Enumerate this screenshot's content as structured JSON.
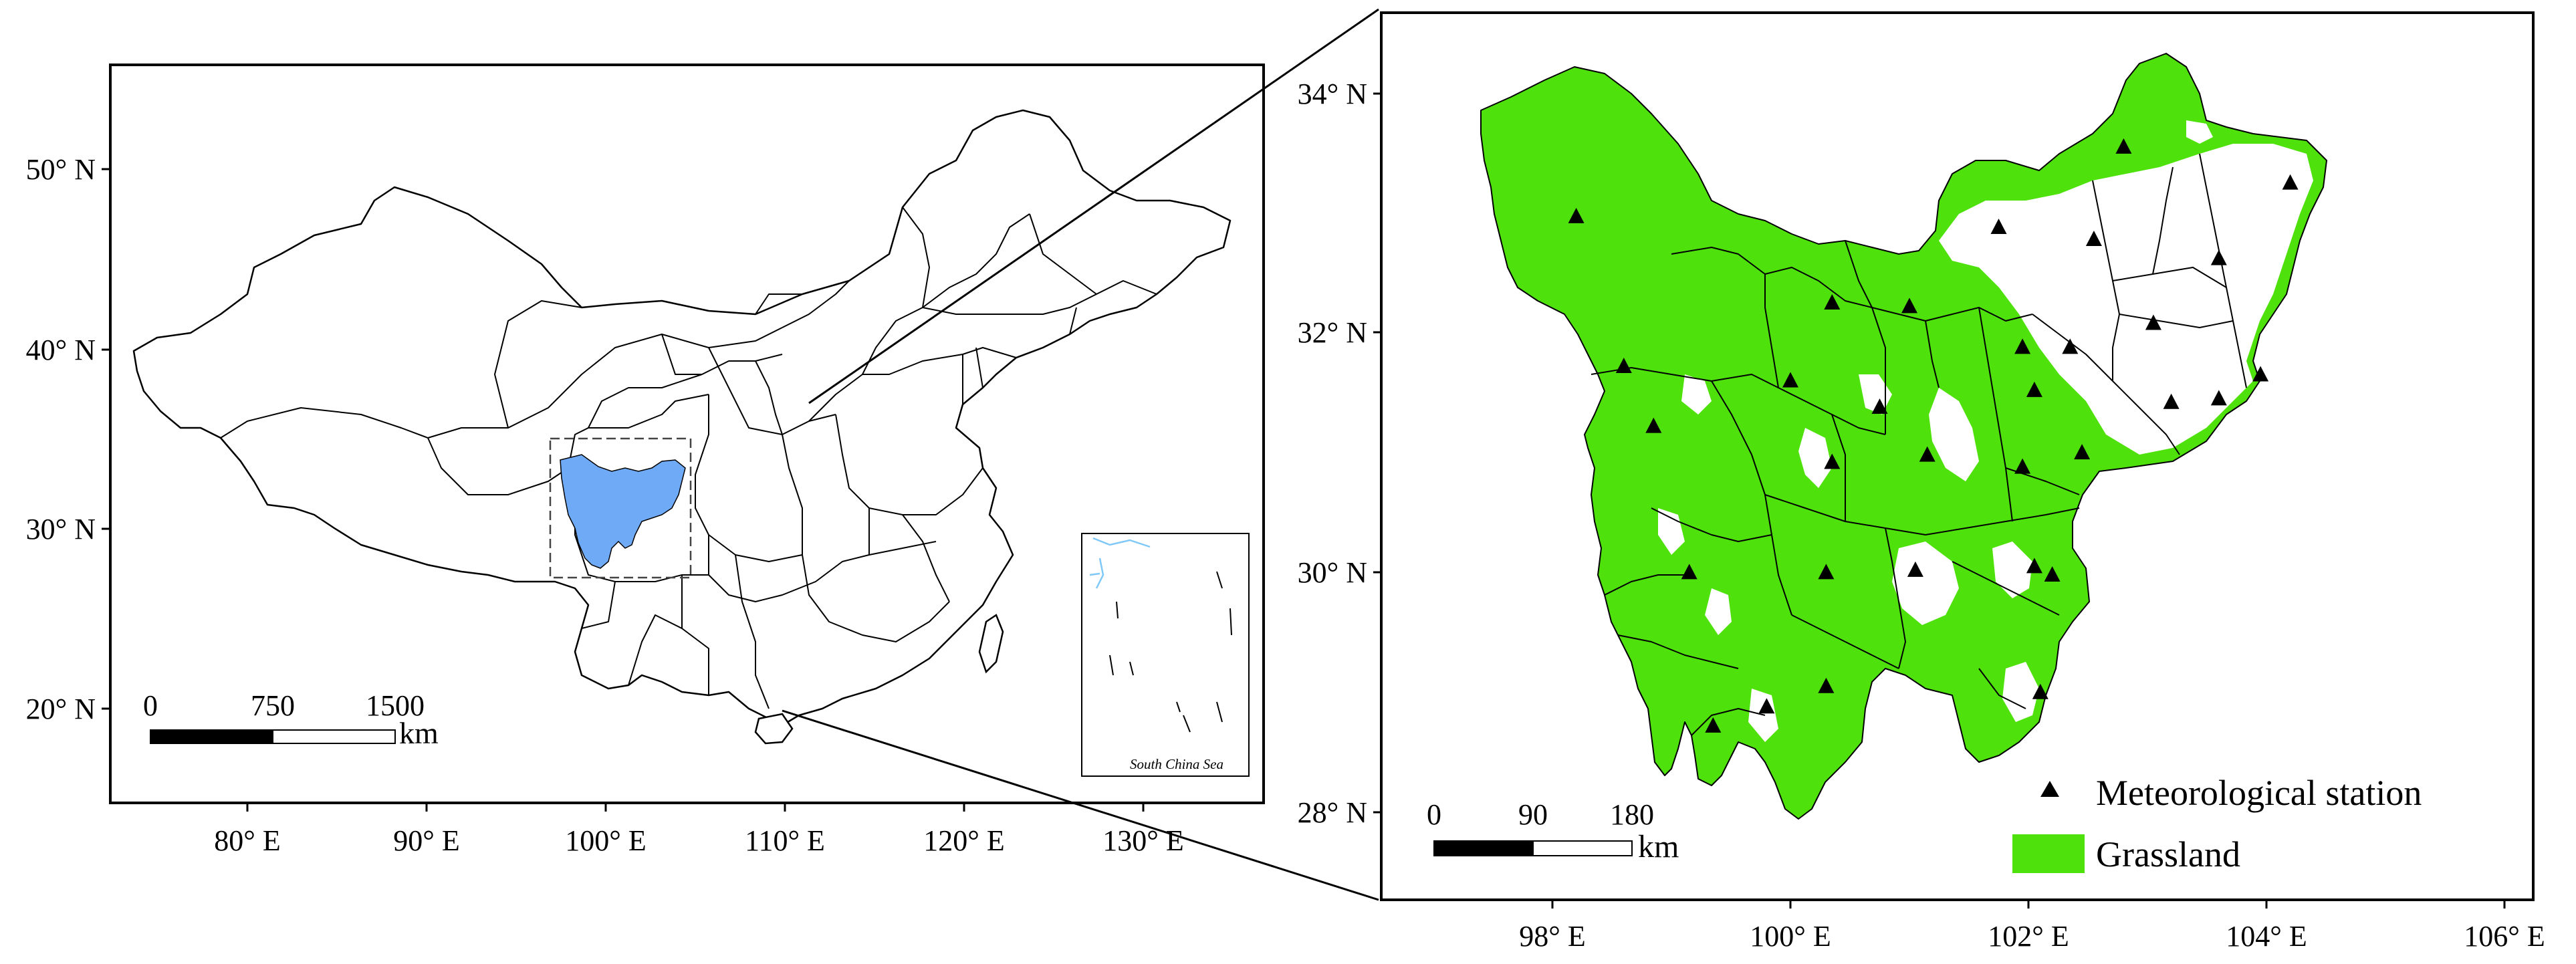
{
  "colors": {
    "background": "#ffffff",
    "frame": "#000000",
    "study_area": "#6faaf7",
    "grassland": "#4ee10b",
    "station": "#000000"
  },
  "overview_map": {
    "lat_labels": [
      "50° N",
      "40° N",
      "30° N",
      "20° N"
    ],
    "lon_labels": [
      "80° E",
      "90° E",
      "100° E",
      "110° E",
      "120° E",
      "130° E"
    ],
    "scale_bar": {
      "ticks": [
        "0",
        "750",
        "1500"
      ],
      "unit": "km"
    },
    "inset_label": "South China Sea"
  },
  "detail_map": {
    "lat_labels": [
      "34° N",
      "32° N",
      "30° N",
      "28° N"
    ],
    "lon_labels": [
      "98° E",
      "100° E",
      "102° E",
      "104° E",
      "106° E"
    ],
    "scale_bar": {
      "ticks": [
        "0",
        "90",
        "180"
      ],
      "unit": "km"
    },
    "legend": {
      "station_label": "Meteorological station",
      "grassland_label": "Grassland"
    },
    "stations": [
      {
        "lon": 98.2,
        "lat": 32.97
      },
      {
        "lon": 98.6,
        "lat": 31.72
      },
      {
        "lon": 98.85,
        "lat": 31.22
      },
      {
        "lon": 99.15,
        "lat": 30.0
      },
      {
        "lon": 99.35,
        "lat": 28.72
      },
      {
        "lon": 99.8,
        "lat": 28.88
      },
      {
        "lon": 100.0,
        "lat": 31.6
      },
      {
        "lon": 100.35,
        "lat": 32.25
      },
      {
        "lon": 100.35,
        "lat": 30.92
      },
      {
        "lon": 100.3,
        "lat": 30.0
      },
      {
        "lon": 100.3,
        "lat": 29.05
      },
      {
        "lon": 100.75,
        "lat": 31.38
      },
      {
        "lon": 101.0,
        "lat": 32.22
      },
      {
        "lon": 101.15,
        "lat": 30.98
      },
      {
        "lon": 101.05,
        "lat": 30.02
      },
      {
        "lon": 101.75,
        "lat": 32.88
      },
      {
        "lon": 101.95,
        "lat": 31.88
      },
      {
        "lon": 101.95,
        "lat": 30.88
      },
      {
        "lon": 102.05,
        "lat": 31.52
      },
      {
        "lon": 102.05,
        "lat": 30.05
      },
      {
        "lon": 102.2,
        "lat": 29.98
      },
      {
        "lon": 102.35,
        "lat": 31.88
      },
      {
        "lon": 102.45,
        "lat": 31.0
      },
      {
        "lon": 102.55,
        "lat": 32.78
      },
      {
        "lon": 102.8,
        "lat": 33.55
      },
      {
        "lon": 103.05,
        "lat": 32.08
      },
      {
        "lon": 103.2,
        "lat": 31.42
      },
      {
        "lon": 103.6,
        "lat": 32.62
      },
      {
        "lon": 103.6,
        "lat": 31.45
      },
      {
        "lon": 103.95,
        "lat": 31.65
      },
      {
        "lon": 104.2,
        "lat": 33.25
      },
      {
        "lon": 102.1,
        "lat": 29.0
      }
    ]
  }
}
